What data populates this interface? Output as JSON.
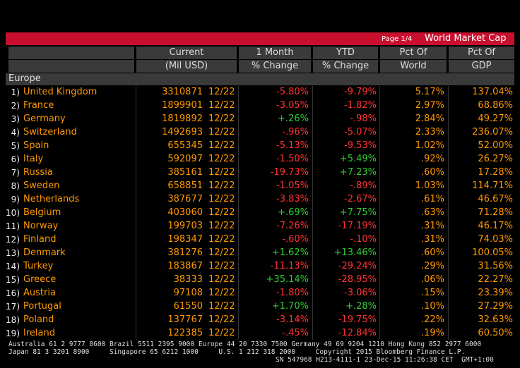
{
  "header": {
    "page": "Page 1/4",
    "title": "World Market Cap"
  },
  "columns": [
    [
      "Current",
      "(Mil USD)"
    ],
    [
      "1 Month",
      "% Change"
    ],
    [
      "YTD",
      "% Change"
    ],
    [
      "Pct Of",
      "World"
    ],
    [
      "Pct Of",
      "GDP"
    ]
  ],
  "section": "Europe",
  "rows": [
    [
      "1)",
      "United Kingdom",
      "3310871",
      "12/22",
      "-5.80%",
      "-9.79%",
      "5.17%",
      "137.04%"
    ],
    [
      "2)",
      "France",
      "1899901",
      "12/22",
      "-3.05%",
      "-1.82%",
      "2.97%",
      "68.86%"
    ],
    [
      "3)",
      "Germany",
      "1819892",
      "12/22",
      "+.26%",
      "-.98%",
      "2.84%",
      "49.27%"
    ],
    [
      "4)",
      "Switzerland",
      "1492693",
      "12/22",
      "-.96%",
      "-5.07%",
      "2.33%",
      "236.07%"
    ],
    [
      "5)",
      "Spain",
      "655345",
      "12/22",
      "-5.13%",
      "-9.53%",
      "1.02%",
      "52.00%"
    ],
    [
      "6)",
      "Italy",
      "592097",
      "12/22",
      "-1.50%",
      "+5.49%",
      ".92%",
      "26.27%"
    ],
    [
      "7)",
      "Russia",
      "385161",
      "12/22",
      "-19.73%",
      "+7.23%",
      ".60%",
      "17.28%"
    ],
    [
      "8)",
      "Sweden",
      "658851",
      "12/22",
      "-1.05%",
      "-.89%",
      "1.03%",
      "114.71%"
    ],
    [
      "9)",
      "Netherlands",
      "387677",
      "12/22",
      "-3.83%",
      "-2.67%",
      ".61%",
      "46.67%"
    ],
    [
      "10)",
      "Belgium",
      "403060",
      "12/22",
      "+.69%",
      "+7.75%",
      ".63%",
      "71.28%"
    ],
    [
      "11)",
      "Norway",
      "199703",
      "12/22",
      "-7.26%",
      "-17.19%",
      ".31%",
      "46.17%"
    ],
    [
      "12)",
      "Finland",
      "198347",
      "12/22",
      "-.60%",
      "-.10%",
      ".31%",
      "74.03%"
    ],
    [
      "13)",
      "Denmark",
      "381276",
      "12/22",
      "+1.62%",
      "+13.46%",
      ".60%",
      "100.05%"
    ],
    [
      "14)",
      "Turkey",
      "183867",
      "12/22",
      "-11.13%",
      "-29.24%",
      ".29%",
      "31.56%"
    ],
    [
      "15)",
      "Greece",
      "38333",
      "12/22",
      "+35.14%",
      "-28.95%",
      ".06%",
      "22.27%"
    ],
    [
      "16)",
      "Austria",
      "97108",
      "12/22",
      "-1.80%",
      "-3.06%",
      ".15%",
      "23.39%"
    ],
    [
      "17)",
      "Portugal",
      "61550",
      "12/22",
      "+1.70%",
      "+.28%",
      ".10%",
      "27.29%"
    ],
    [
      "18)",
      "Poland",
      "137767",
      "12/22",
      "-3.14%",
      "-19.75%",
      ".22%",
      "32.63%"
    ],
    [
      "19)",
      "Ireland",
      "122385",
      "12/22",
      "-.45%",
      "-12.84%",
      ".19%",
      "60.50%"
    ]
  ],
  "footer": [
    "Australia 61 2 9777 8600 Brazil 5511 2395 9000 Europe 44 20 7330 7500 Germany 49 69 9204 1210 Hong Kong 852 2977 6000",
    "Japan 81 3 3201 8900     Singapore 65 6212 1000     U.S. 1 212 318 2000     Copyright 2015 Bloomberg Finance L.P.",
    "SN 547968 H213-4111-1 23-Dec-15 11:26:38 CET  GMT+1:00"
  ]
}
